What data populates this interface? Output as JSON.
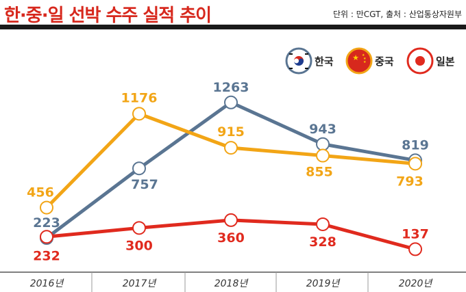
{
  "header": {
    "title": "한·중·일 선박 수주 실적 추이",
    "source": "단위 : 만CGT, 출처 : 산업통상자원부"
  },
  "chart_data": {
    "type": "line",
    "title": "한·중·일 선박 수주 실적 추이",
    "unit": "단위 : 만CGT",
    "source": "출처 : 산업통상자원부",
    "categories": [
      "2016년",
      "2017년",
      "2018년",
      "2019년",
      "2020년"
    ],
    "ylim": [
      0,
      1300
    ],
    "grid": false,
    "legend": "top-right",
    "series": [
      {
        "name": "한국",
        "values": [
          223,
          757,
          1263,
          943,
          819
        ],
        "color": "#5a7592"
      },
      {
        "name": "중국",
        "values": [
          456,
          1176,
          915,
          855,
          793
        ],
        "color": "#f2a516"
      },
      {
        "name": "일본",
        "values": [
          232,
          300,
          360,
          328,
          137
        ],
        "color": "#e02a1e"
      }
    ]
  }
}
